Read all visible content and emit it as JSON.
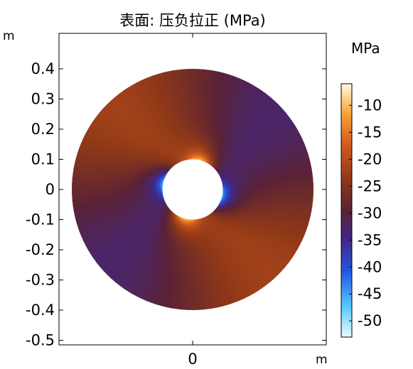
{
  "chart_data": {
    "type": "heatmap",
    "title": "表面: 压负拉正 (MPa)",
    "x_unit": "m",
    "y_unit": "m",
    "x_ticks": [
      {
        "value": 0,
        "label": "0"
      }
    ],
    "y_ticks": [
      {
        "value": 0.4,
        "label": "0.4"
      },
      {
        "value": 0.3,
        "label": "0.3"
      },
      {
        "value": 0.2,
        "label": "0.2"
      },
      {
        "value": 0.1,
        "label": "0.1"
      },
      {
        "value": 0.0,
        "label": "0"
      },
      {
        "value": -0.1,
        "label": "-0.1"
      },
      {
        "value": -0.2,
        "label": "-0.2"
      },
      {
        "value": -0.3,
        "label": "-0.3"
      },
      {
        "value": -0.4,
        "label": "-0.4"
      },
      {
        "value": -0.5,
        "label": "-0.5"
      }
    ],
    "xlim": [
      -0.44,
      0.44
    ],
    "ylim": [
      -0.515,
      0.52
    ],
    "geometry": {
      "outer_radius_m": 0.4,
      "inner_radius_m": 0.1
    },
    "colorbar": {
      "unit": "MPa",
      "range": [
        -53,
        -6
      ],
      "ticks": [
        -10,
        -15,
        -20,
        -25,
        -30,
        -35,
        -40,
        -45,
        -50
      ],
      "tick_labels": [
        "-10",
        "-15",
        "-20",
        "-25",
        "-30",
        "-35",
        "-40",
        "-45",
        "-50"
      ]
    },
    "field_description_values": {
      "tension_side_peak_near_hole": -6,
      "compression_side_peak_near_hole": -52,
      "far_field_orange_quadrants": -22,
      "far_field_purple_quadrants": -33
    }
  }
}
